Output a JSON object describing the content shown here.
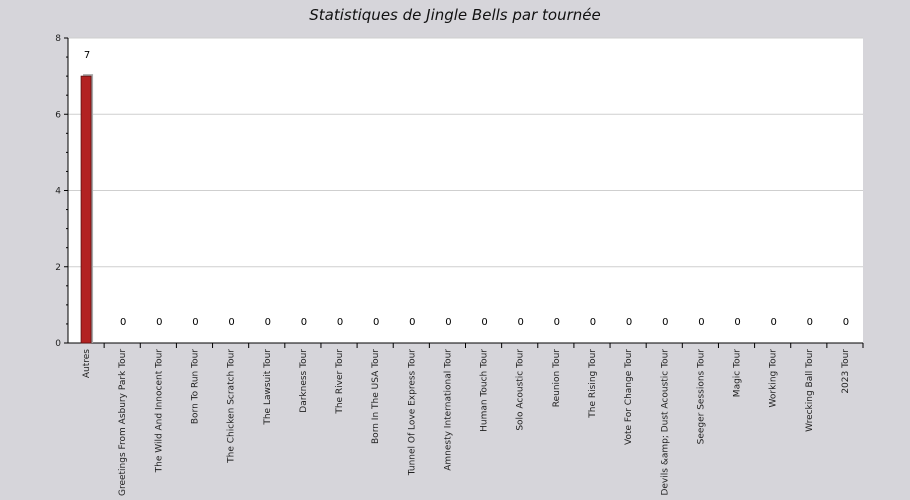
{
  "chart_data": {
    "type": "bar",
    "title": "Statistiques de Jingle Bells par tournée",
    "xlabel": "",
    "ylabel": "",
    "ylim": [
      0,
      8
    ],
    "yticks": [
      0,
      2,
      4,
      6,
      8
    ],
    "grid": true,
    "colors": {
      "bar": "#b22222",
      "bar_shadow": "#a9a9a9",
      "plot_bg": "#ffffff",
      "page_bg": "#d6d5da",
      "grid": "#cfcfcf"
    },
    "categories": [
      "Autres",
      "Greetings From Asbury Park Tour",
      "The Wild And Innocent Tour",
      "Born To Run Tour",
      "The Chicken Scratch Tour",
      "The Lawsuit Tour",
      "Darkness Tour",
      "The River Tour",
      "Born In The USA Tour",
      "Tunnel Of Love Express Tour",
      "Amnesty International Tour",
      "Human Touch Tour",
      "Solo Acoustic Tour",
      "Reunion Tour",
      "The Rising Tour",
      "Vote For Change Tour",
      "Devils &amp; Dust Acoustic Tour",
      "Seeger Sessions Tour",
      "Magic Tour",
      "Working Tour",
      "Wrecking Ball Tour",
      "2023 Tour"
    ],
    "values": [
      7,
      0,
      0,
      0,
      0,
      0,
      0,
      0,
      0,
      0,
      0,
      0,
      0,
      0,
      0,
      0,
      0,
      0,
      0,
      0,
      0,
      0
    ]
  }
}
